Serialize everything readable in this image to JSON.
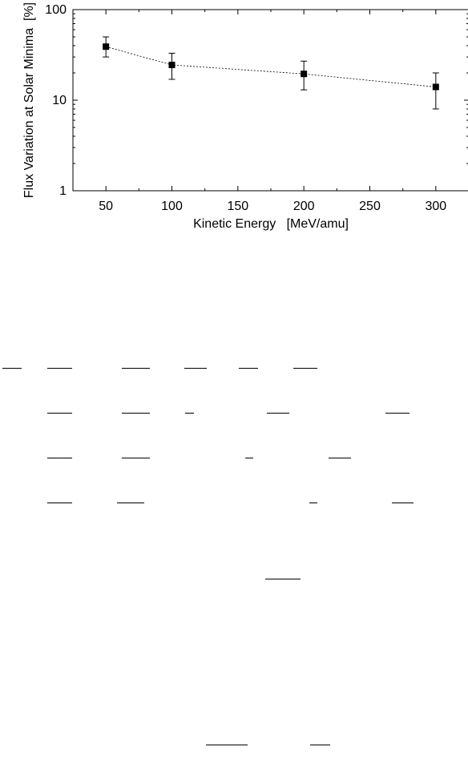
{
  "chart_data": {
    "type": "scatter",
    "title": "",
    "xlabel": "Kinetic Energy   [MeV/amu]",
    "ylabel": "Flux Variation at Solar Minima  [%]",
    "xlim": [
      25,
      325
    ],
    "ylim": [
      1,
      100
    ],
    "y_scale": "log",
    "x_ticks": [
      50,
      100,
      150,
      200,
      250,
      300
    ],
    "x_tick_labels": [
      "50",
      "100",
      "150",
      "200",
      "250",
      "300"
    ],
    "y_ticks": [
      1,
      10,
      100
    ],
    "y_tick_labels": [
      "1",
      "10",
      "100"
    ],
    "grid": false,
    "legend": "none",
    "marker": "filled-square",
    "line_style": "dotted",
    "series": [
      {
        "x": [
          50,
          100,
          200,
          300
        ],
        "y": [
          39,
          24.5,
          19.5,
          14
        ],
        "y_err_low": [
          30,
          17,
          13,
          8
        ],
        "y_err_high": [
          50,
          33,
          27,
          20
        ]
      }
    ]
  },
  "rule_lines_note": ""
}
